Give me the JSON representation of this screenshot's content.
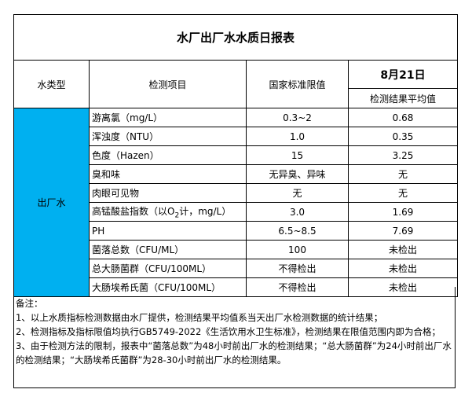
{
  "title": "水厂出厂水水质日报表",
  "headers": {
    "water_type": "水类型",
    "item": "检测项目",
    "standard": "国家标准限值",
    "date": "8月21日",
    "result": "检测结果平均值"
  },
  "water_type_value": "出厂水",
  "colors": {
    "water_type_fill": "#00B0F0"
  },
  "rows": [
    {
      "item": "游离氯（mg/L）",
      "standard": "0.3~2",
      "result": "0.68"
    },
    {
      "item": "浑浊度（NTU）",
      "standard": "1.0",
      "result": "0.35"
    },
    {
      "item": "色度（Hazen）",
      "standard": "15",
      "result": "3.25"
    },
    {
      "item": "臭和味",
      "standard": "无异臭、异味",
      "result": "无"
    },
    {
      "item": "肉眼可见物",
      "standard": "无",
      "result": "无"
    },
    {
      "item_prefix": "高锰酸盐指数（以O",
      "item_sub": "2",
      "item_suffix": "计，mg/L）",
      "standard": "3.0",
      "result": "1.69"
    },
    {
      "item": "PH",
      "standard": "6.5~8.5",
      "result": "7.69"
    },
    {
      "item": "菌落总数（CFU/ML）",
      "standard": "100",
      "result": "未检出"
    },
    {
      "item": "总大肠菌群（CFU/100ML）",
      "standard": "不得检出",
      "result": "未检出"
    },
    {
      "item": "大肠埃希氏菌（CFU/100ML）",
      "standard": "不得检出",
      "result": "未检出"
    }
  ],
  "notes": {
    "heading": "备注：",
    "lines": [
      "1、以上水质指标检测数据由水厂提供，检测结果平均值系当天出厂水检测数据的统计结果；",
      "2、检测指标及指标限值均执行GB5749-2022《生活饮用水卫生标准》，检测结果在限值范围内即为合格；",
      "3、由于检测方法的限制，报表中“菌落总数”为48小时前出厂水的检测结果；“总大肠菌群”为24小时前出厂水的检测结果；“大肠埃希氏菌群”为28-30小时前出厂水的检测结果。"
    ]
  }
}
